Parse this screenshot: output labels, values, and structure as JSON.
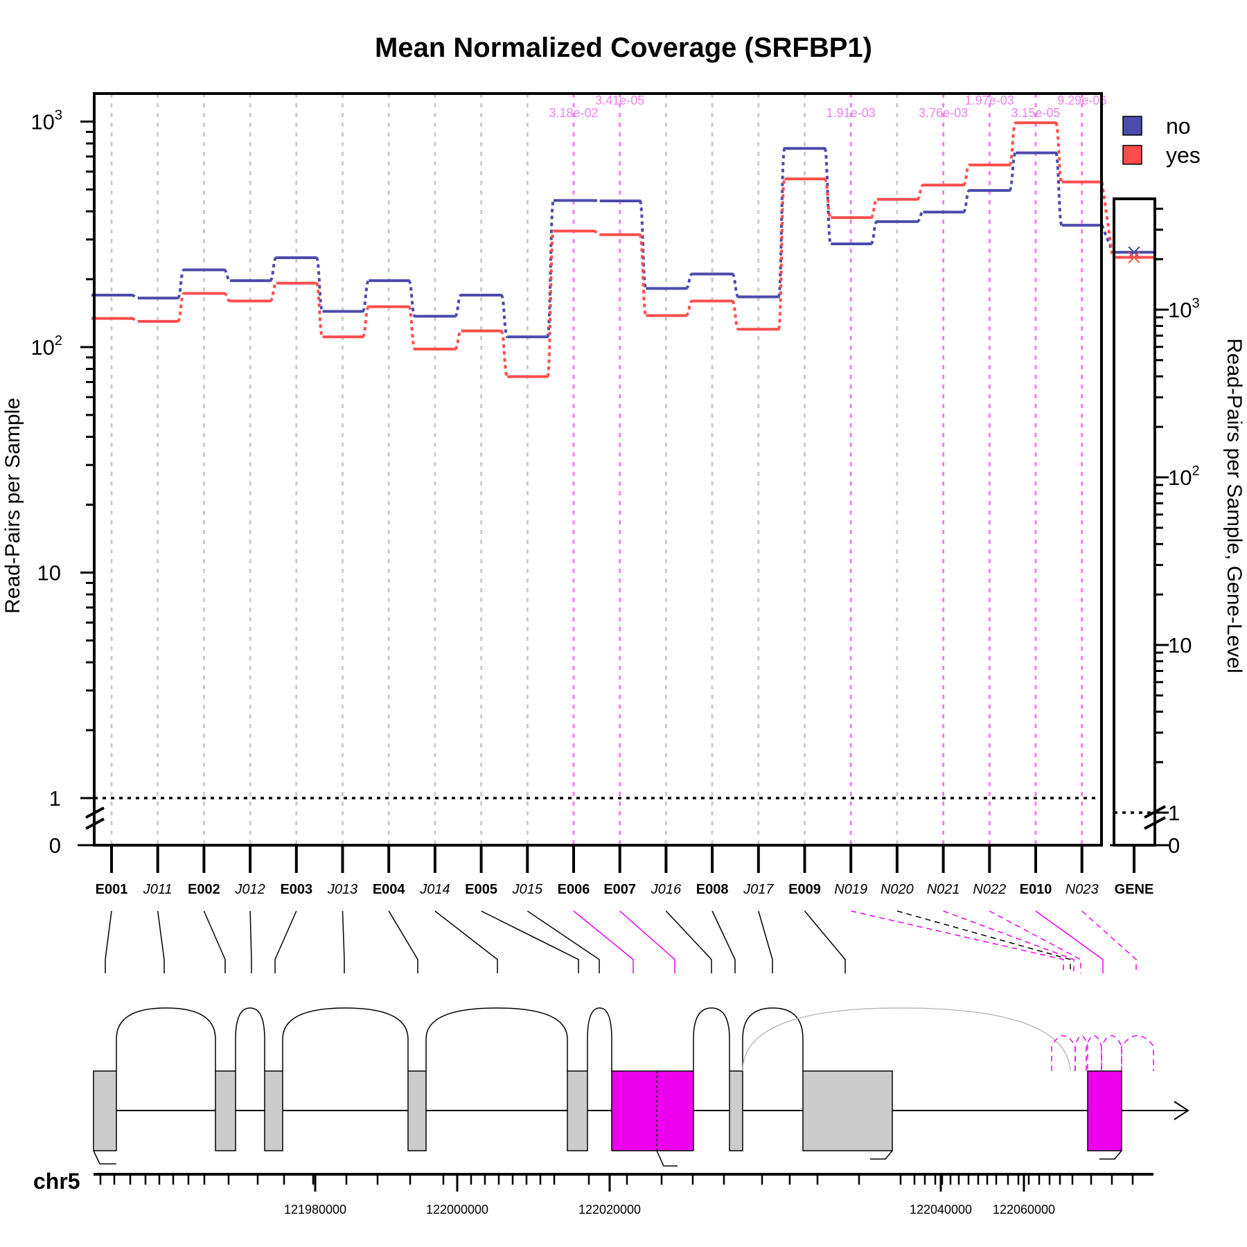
{
  "title": "Mean Normalized Coverage (SRFBP1)",
  "left_axis_label": "Read-Pairs per Sample",
  "right_axis_label": "Read-Pairs per Sample, Gene-Level",
  "left_ticks": [
    {
      "v": 1000,
      "base": "10",
      "exp": "3"
    },
    {
      "v": 100,
      "base": "10",
      "exp": "2"
    },
    {
      "v": 10,
      "base": "10",
      "exp": ""
    },
    {
      "v": 1,
      "base": "1",
      "exp": ""
    },
    {
      "v": 0,
      "base": "0",
      "exp": ""
    }
  ],
  "right_ticks": [
    {
      "v": 1000,
      "base": "10",
      "exp": "3"
    },
    {
      "v": 100,
      "base": "10",
      "exp": "2"
    },
    {
      "v": 10,
      "base": "10",
      "exp": ""
    },
    {
      "v": 1,
      "base": "1",
      "exp": ""
    },
    {
      "v": 0,
      "base": "0",
      "exp": ""
    }
  ],
  "chromosome": "chr5",
  "coord_ticks": [
    "121980000",
    "122000000",
    "122020000",
    "122040000",
    "122060000"
  ],
  "chart_data": {
    "type": "line",
    "scale": "log",
    "ylim": [
      0.5,
      1300
    ],
    "gene_ylim": [
      0.5,
      3500
    ],
    "legend_position": "top-right",
    "features": [
      {
        "id": "E001",
        "kind": "exon",
        "sig": false
      },
      {
        "id": "J011",
        "kind": "junction",
        "sig": false
      },
      {
        "id": "E002",
        "kind": "exon",
        "sig": false
      },
      {
        "id": "J012",
        "kind": "junction",
        "sig": false
      },
      {
        "id": "E003",
        "kind": "exon",
        "sig": false
      },
      {
        "id": "J013",
        "kind": "junction",
        "sig": false
      },
      {
        "id": "E004",
        "kind": "exon",
        "sig": false
      },
      {
        "id": "J014",
        "kind": "junction",
        "sig": false
      },
      {
        "id": "E005",
        "kind": "exon",
        "sig": false
      },
      {
        "id": "J015",
        "kind": "junction",
        "sig": false
      },
      {
        "id": "E006",
        "kind": "exon",
        "sig": true,
        "pval": "3.18e-02"
      },
      {
        "id": "E007",
        "kind": "exon",
        "sig": true,
        "pval": "3.41e-05"
      },
      {
        "id": "J016",
        "kind": "junction",
        "sig": false
      },
      {
        "id": "E008",
        "kind": "exon",
        "sig": false
      },
      {
        "id": "J017",
        "kind": "junction",
        "sig": false
      },
      {
        "id": "E009",
        "kind": "exon",
        "sig": false
      },
      {
        "id": "N019",
        "kind": "novel",
        "sig": true,
        "pval": "1.91e-03"
      },
      {
        "id": "N020",
        "kind": "novel",
        "sig": false
      },
      {
        "id": "N021",
        "kind": "novel",
        "sig": true,
        "pval": "3.76e-03"
      },
      {
        "id": "N022",
        "kind": "novel",
        "sig": true,
        "pval": "1.97e-03"
      },
      {
        "id": "E010",
        "kind": "exon",
        "sig": true,
        "pval": "3.15e-05"
      },
      {
        "id": "N023",
        "kind": "novel",
        "sig": true,
        "pval": "9.29e-06"
      }
    ],
    "gene_label": "GENE",
    "series": [
      {
        "name": "no",
        "color": "#4b4bab",
        "values": [
          170,
          165,
          220,
          197,
          249,
          144,
          197,
          137,
          170,
          111,
          447,
          445,
          182,
          211,
          167,
          760,
          287,
          360,
          397,
          495,
          727,
          347
        ],
        "gene_value": 2200
      },
      {
        "name": "yes",
        "color": "#ff4d4d",
        "values": [
          134,
          130,
          173,
          160,
          192,
          111,
          151,
          98,
          118,
          74,
          327,
          315,
          138,
          160,
          120,
          557,
          375,
          452,
          523,
          642,
          988,
          540
        ],
        "gene_value": 2050
      }
    ]
  },
  "colors": {
    "highlight": "#ee00ee",
    "exon_fill": "#cccccc",
    "grid": "#cccccc",
    "sig_grid": "#ee82ee"
  }
}
